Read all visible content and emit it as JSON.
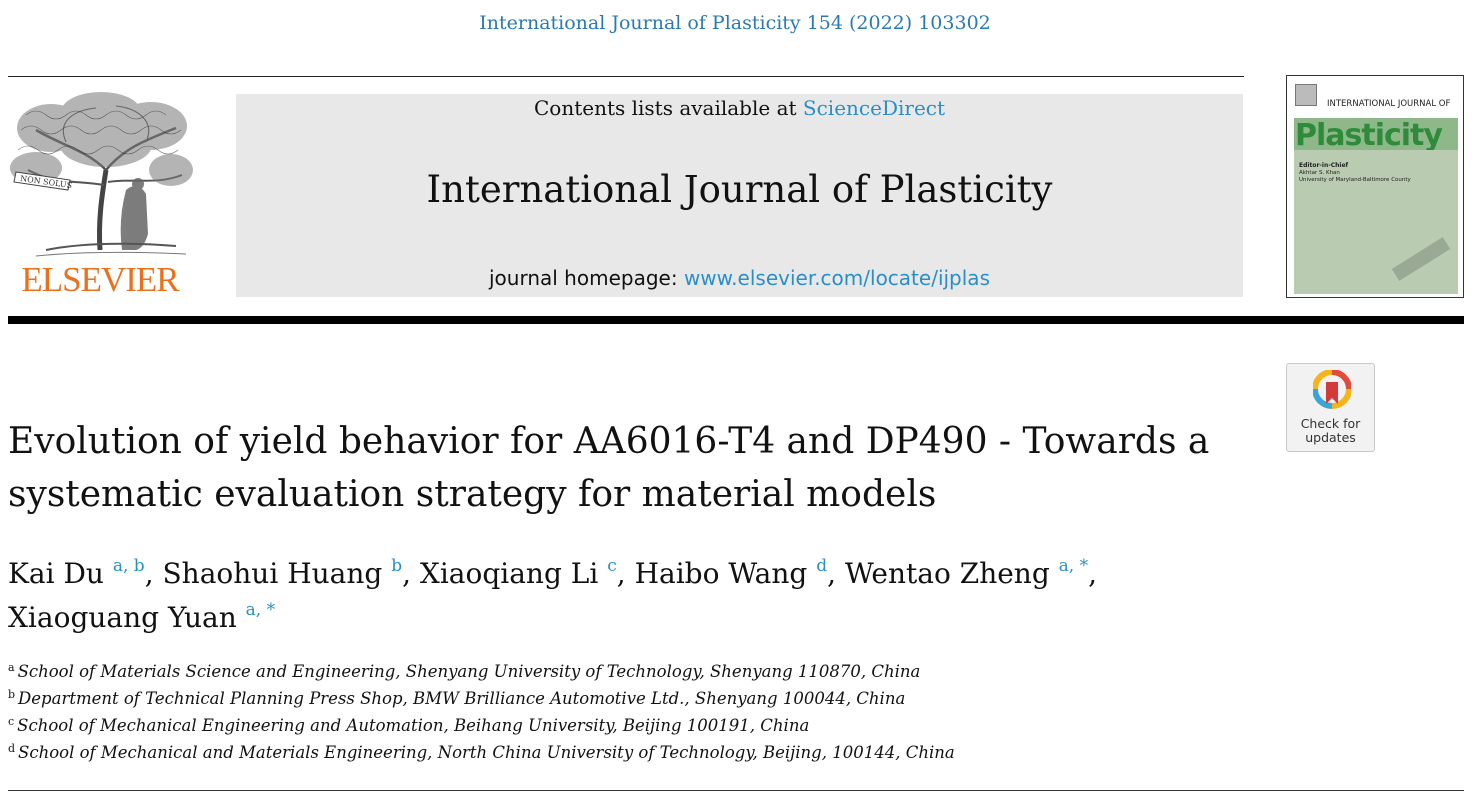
{
  "citation": "International Journal of Plasticity 154 (2022) 103302",
  "publisher": {
    "name": "ELSEVIER",
    "motto": "NON SOLUS",
    "brand_color": "#e9711c"
  },
  "masthead": {
    "contents_prefix": "Contents lists available at ",
    "contents_link": "ScienceDirect",
    "journal_title": "International Journal of Plasticity",
    "homepage_prefix": "journal homepage: ",
    "homepage_link": "www.elsevier.com/locate/ijplas",
    "link_color": "#2a8fc6",
    "background": "#e8e8e8"
  },
  "cover": {
    "journal_line": "INTERNATIONAL JOURNAL OF",
    "wordmark": "Plasticity",
    "editor_label": "Editor-in-Chief",
    "editor_name": "Akhtar S. Khan",
    "editor_affil": "University of Maryland-Baltimore County"
  },
  "check_updates": {
    "icon": "check-for-updates-icon",
    "line1": "Check for",
    "line2": "updates"
  },
  "article": {
    "title": "Evolution of yield behavior for AA6016-T4 and DP490 - Towards a systematic evaluation strategy for material models",
    "authors": [
      {
        "name": "Kai Du",
        "sup": "a, b",
        "sep": ", "
      },
      {
        "name": "Shaohui Huang",
        "sup": "b",
        "sep": ", "
      },
      {
        "name": "Xiaoqiang Li",
        "sup": "c",
        "sep": ", "
      },
      {
        "name": "Haibo Wang",
        "sup": "d",
        "sep": ", "
      },
      {
        "name": "Wentao Zheng",
        "sup": "a, *",
        "sep": ","
      },
      {
        "name": "Xiaoguang Yuan",
        "sup": "a, *",
        "sep": ""
      }
    ],
    "affiliations": [
      {
        "key": "a",
        "text": "School of Materials Science and Engineering, Shenyang University of Technology, Shenyang 110870, China"
      },
      {
        "key": "b",
        "text": "Department of Technical Planning Press Shop, BMW Brilliance Automotive Ltd., Shenyang 100044, China"
      },
      {
        "key": "c",
        "text": "School of Mechanical Engineering and Automation, Beihang University, Beijing 100191, China"
      },
      {
        "key": "d",
        "text": "School of Mechanical and Materials Engineering, North China University of Technology, Beijing, 100144, China"
      }
    ]
  }
}
